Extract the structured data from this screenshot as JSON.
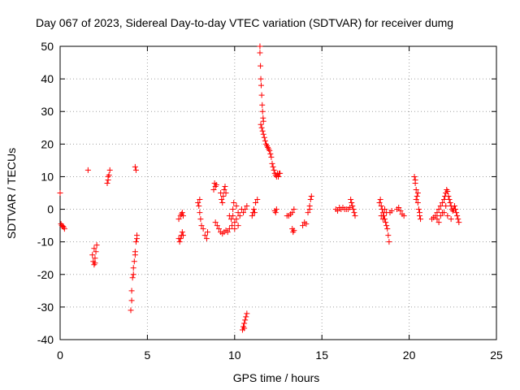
{
  "chart_data": {
    "type": "scatter",
    "title": "Day 067 of 2023, Sidereal Day-to-day VTEC variation (SDTVAR) for receiver dumg",
    "xlabel": "GPS time / hours",
    "ylabel": "SDTVAR / TECUs",
    "xlim": [
      0,
      25
    ],
    "ylim": [
      -40,
      50
    ],
    "xticks": [
      "0",
      "5",
      "10",
      "15",
      "20",
      "25"
    ],
    "yticks": [
      "-40",
      "-30",
      "-20",
      "-10",
      "0",
      "10",
      "20",
      "30",
      "40",
      "50"
    ],
    "grid": true,
    "marker": "+",
    "color": "#ff0000",
    "series": [
      {
        "name": "SDTVAR",
        "points": [
          [
            0.0,
            5
          ],
          [
            0.05,
            -4.5
          ],
          [
            0.1,
            -5
          ],
          [
            0.15,
            -5.2
          ],
          [
            0.2,
            -5.5
          ],
          [
            0.25,
            -6
          ],
          [
            1.6,
            12
          ],
          [
            1.85,
            -14
          ],
          [
            1.9,
            -16
          ],
          [
            1.95,
            -17
          ],
          [
            2.0,
            -15
          ],
          [
            2.05,
            -13
          ],
          [
            2.1,
            -11
          ],
          [
            1.95,
            -12
          ],
          [
            2.0,
            -16.5
          ],
          [
            2.7,
            8
          ],
          [
            2.75,
            9
          ],
          [
            2.8,
            10.5
          ],
          [
            2.85,
            12
          ],
          [
            2.75,
            10
          ],
          [
            4.05,
            -31
          ],
          [
            4.1,
            -28
          ],
          [
            4.1,
            -25
          ],
          [
            4.15,
            -21
          ],
          [
            4.2,
            -20
          ],
          [
            4.25,
            -16
          ],
          [
            4.3,
            -13
          ],
          [
            4.35,
            -10
          ],
          [
            4.4,
            -8
          ],
          [
            4.2,
            -18
          ],
          [
            4.3,
            -14
          ],
          [
            4.4,
            -9
          ],
          [
            4.3,
            13
          ],
          [
            4.35,
            12
          ],
          [
            6.8,
            -3
          ],
          [
            6.9,
            -2
          ],
          [
            6.95,
            -1.5
          ],
          [
            7.0,
            -1
          ],
          [
            7.05,
            -2
          ],
          [
            6.8,
            -9
          ],
          [
            6.85,
            -10
          ],
          [
            6.9,
            -9
          ],
          [
            6.95,
            -8
          ],
          [
            7.0,
            -7
          ],
          [
            7.05,
            -8
          ],
          [
            7.9,
            2
          ],
          [
            7.95,
            1
          ],
          [
            8.0,
            -1
          ],
          [
            8.05,
            -3
          ],
          [
            8.1,
            -5
          ],
          [
            8.2,
            -6
          ],
          [
            8.3,
            -8
          ],
          [
            8.4,
            -9
          ],
          [
            8.45,
            -7
          ],
          [
            8.0,
            3
          ],
          [
            8.8,
            6
          ],
          [
            8.85,
            8
          ],
          [
            8.9,
            7
          ],
          [
            8.95,
            7.5
          ],
          [
            8.9,
            -4
          ],
          [
            9.0,
            -5
          ],
          [
            9.1,
            -6
          ],
          [
            9.2,
            -7
          ],
          [
            9.3,
            -7.5
          ],
          [
            9.4,
            -7
          ],
          [
            9.5,
            -6.5
          ],
          [
            9.6,
            -7
          ],
          [
            9.7,
            -6
          ],
          [
            9.2,
            5
          ],
          [
            9.25,
            3
          ],
          [
            9.3,
            2
          ],
          [
            9.35,
            4
          ],
          [
            9.4,
            6
          ],
          [
            9.45,
            7
          ],
          [
            9.5,
            5
          ],
          [
            9.7,
            -2
          ],
          [
            9.8,
            -3
          ],
          [
            9.9,
            -2
          ],
          [
            10.0,
            -4
          ],
          [
            10.1,
            -3
          ],
          [
            10.2,
            -1
          ],
          [
            10.3,
            -2
          ],
          [
            10.4,
            0
          ],
          [
            10.5,
            -1
          ],
          [
            10.6,
            0
          ],
          [
            10.7,
            1
          ],
          [
            9.85,
            -5
          ],
          [
            10.0,
            -6
          ],
          [
            10.2,
            -5
          ],
          [
            9.9,
            0
          ],
          [
            10.1,
            1
          ],
          [
            9.95,
            2
          ],
          [
            10.45,
            -37
          ],
          [
            10.5,
            -36
          ],
          [
            10.55,
            -35
          ],
          [
            10.6,
            -34
          ],
          [
            10.65,
            -33
          ],
          [
            10.7,
            -32
          ],
          [
            10.55,
            -36.5
          ],
          [
            11.0,
            -2
          ],
          [
            11.05,
            -1
          ],
          [
            11.1,
            0
          ],
          [
            11.15,
            -1
          ],
          [
            11.2,
            2
          ],
          [
            11.3,
            3
          ],
          [
            11.45,
            50
          ],
          [
            11.45,
            48
          ],
          [
            11.48,
            44
          ],
          [
            11.5,
            40
          ],
          [
            11.52,
            38
          ],
          [
            11.55,
            35
          ],
          [
            11.58,
            32
          ],
          [
            11.6,
            30
          ],
          [
            11.63,
            28
          ],
          [
            11.65,
            27
          ],
          [
            11.5,
            26
          ],
          [
            11.55,
            25
          ],
          [
            11.6,
            24
          ],
          [
            11.65,
            23
          ],
          [
            11.7,
            22
          ],
          [
            11.75,
            21
          ],
          [
            11.8,
            20
          ],
          [
            11.85,
            19.5
          ],
          [
            11.9,
            19
          ],
          [
            11.95,
            18.5
          ],
          [
            12.0,
            18
          ],
          [
            12.05,
            17
          ],
          [
            12.1,
            16
          ],
          [
            12.15,
            14
          ],
          [
            12.2,
            13
          ],
          [
            12.25,
            12
          ],
          [
            12.3,
            11
          ],
          [
            12.35,
            10.5
          ],
          [
            12.4,
            10
          ],
          [
            12.45,
            11
          ],
          [
            12.5,
            10
          ],
          [
            12.55,
            11
          ],
          [
            12.6,
            11
          ],
          [
            12.3,
            -0.5
          ],
          [
            12.35,
            -1
          ],
          [
            12.4,
            0
          ],
          [
            13.0,
            -2
          ],
          [
            13.1,
            -2
          ],
          [
            13.2,
            -1.5
          ],
          [
            13.3,
            -1
          ],
          [
            13.4,
            0
          ],
          [
            13.3,
            -6
          ],
          [
            13.35,
            -7
          ],
          [
            13.4,
            -6.5
          ],
          [
            13.9,
            -5
          ],
          [
            14.0,
            -4
          ],
          [
            14.1,
            -4.5
          ],
          [
            14.2,
            -1
          ],
          [
            14.3,
            1
          ],
          [
            14.35,
            3
          ],
          [
            14.4,
            4
          ],
          [
            14.3,
            0
          ],
          [
            15.8,
            0
          ],
          [
            15.9,
            -0.5
          ],
          [
            16.0,
            0.5
          ],
          [
            16.1,
            0
          ],
          [
            16.2,
            0.5
          ],
          [
            16.3,
            0
          ],
          [
            16.4,
            0
          ],
          [
            16.5,
            0
          ],
          [
            16.6,
            0.5
          ],
          [
            16.65,
            3
          ],
          [
            16.7,
            2
          ],
          [
            16.75,
            1
          ],
          [
            16.8,
            0
          ],
          [
            16.85,
            -1
          ],
          [
            16.9,
            -2
          ],
          [
            18.3,
            2
          ],
          [
            18.35,
            3
          ],
          [
            18.4,
            1
          ],
          [
            18.45,
            0
          ],
          [
            18.5,
            -1
          ],
          [
            18.55,
            -2
          ],
          [
            18.6,
            -3
          ],
          [
            18.65,
            -4
          ],
          [
            18.7,
            -5
          ],
          [
            18.75,
            -6
          ],
          [
            18.8,
            -8
          ],
          [
            18.85,
            -10
          ],
          [
            18.4,
            -2
          ],
          [
            18.5,
            -3
          ],
          [
            18.6,
            0
          ],
          [
            18.7,
            -1
          ],
          [
            18.9,
            -1
          ],
          [
            19.0,
            -0.5
          ],
          [
            19.3,
            0
          ],
          [
            19.4,
            0.5
          ],
          [
            19.5,
            -0.5
          ],
          [
            19.6,
            -1.5
          ],
          [
            19.7,
            -2
          ],
          [
            20.3,
            10
          ],
          [
            20.35,
            8
          ],
          [
            20.4,
            6
          ],
          [
            20.45,
            4
          ],
          [
            20.5,
            2
          ],
          [
            20.55,
            0
          ],
          [
            20.6,
            -2
          ],
          [
            20.65,
            -3
          ],
          [
            20.35,
            9
          ],
          [
            20.4,
            3
          ],
          [
            20.5,
            5
          ],
          [
            20.6,
            -1
          ],
          [
            21.3,
            -3
          ],
          [
            21.4,
            -2.5
          ],
          [
            21.5,
            -2
          ],
          [
            21.6,
            -1
          ],
          [
            21.7,
            0
          ],
          [
            21.8,
            1
          ],
          [
            21.9,
            2
          ],
          [
            22.0,
            3
          ],
          [
            22.05,
            4
          ],
          [
            22.1,
            5
          ],
          [
            22.15,
            6
          ],
          [
            22.2,
            5.5
          ],
          [
            22.25,
            4
          ],
          [
            22.3,
            3
          ],
          [
            22.35,
            2
          ],
          [
            22.4,
            1
          ],
          [
            22.45,
            0
          ],
          [
            22.5,
            -0.5
          ],
          [
            22.55,
            0
          ],
          [
            22.6,
            1
          ],
          [
            22.65,
            0
          ],
          [
            22.7,
            -1
          ],
          [
            22.75,
            -2
          ],
          [
            22.8,
            -3
          ],
          [
            22.85,
            -4
          ],
          [
            21.6,
            -3
          ],
          [
            21.8,
            -2
          ],
          [
            22.0,
            -1
          ],
          [
            22.2,
            -2
          ],
          [
            22.4,
            -3
          ],
          [
            21.7,
            -4
          ],
          [
            21.9,
            -1
          ],
          [
            22.1,
            1
          ]
        ]
      }
    ]
  }
}
